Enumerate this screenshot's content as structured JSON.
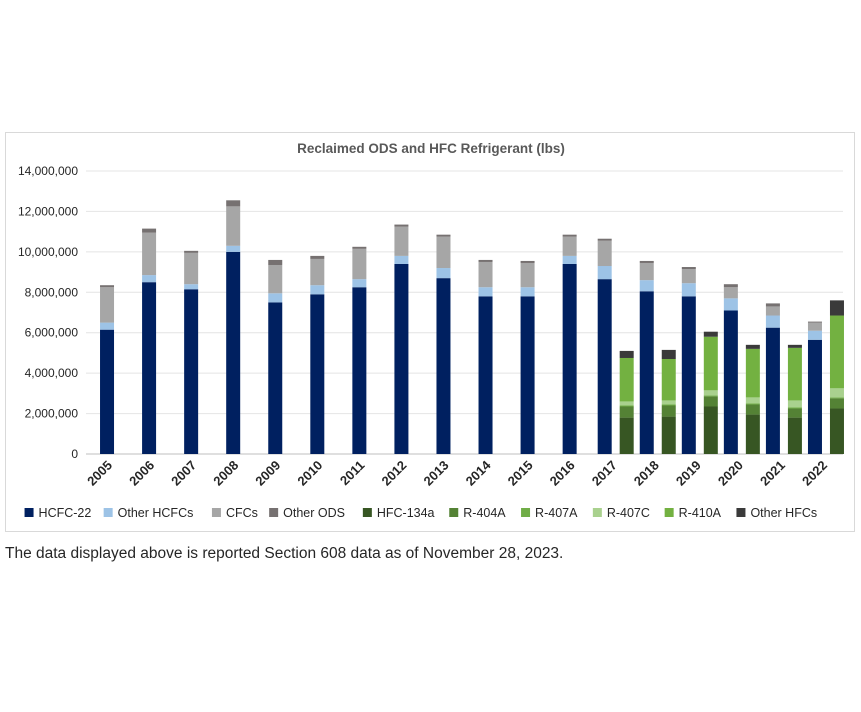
{
  "chart_data": {
    "type": "bar",
    "stacked": true,
    "title": "Reclaimed ODS and HFC Refrigerant (lbs)",
    "xlabel": "",
    "ylabel": "",
    "ylim": [
      0,
      14000000
    ],
    "yticks": [
      0,
      2000000,
      4000000,
      6000000,
      8000000,
      10000000,
      12000000,
      14000000
    ],
    "ytick_labels": [
      "0",
      "2,000,000",
      "4,000,000",
      "6,000,000",
      "8,000,000",
      "10,000,000",
      "12,000,000",
      "14,000,000"
    ],
    "grid": true,
    "legend_position": "bottom",
    "categories": [
      "2005",
      "2006",
      "2007",
      "2008",
      "2009",
      "2010",
      "2011",
      "2012",
      "2013",
      "2014",
      "2015",
      "2016",
      "2017",
      "2018",
      "2019",
      "2020",
      "2021",
      "2022"
    ],
    "groups": [
      {
        "name": "ODS",
        "categories": [
          "2005",
          "2006",
          "2007",
          "2008",
          "2009",
          "2010",
          "2011",
          "2012",
          "2013",
          "2014",
          "2015",
          "2016",
          "2017",
          "2018",
          "2019",
          "2020",
          "2021",
          "2022"
        ],
        "series": [
          {
            "name": "HCFC-22",
            "color": "#002060",
            "values": [
              6150000,
              8500000,
              8150000,
              10000000,
              7500000,
              7900000,
              8250000,
              9400000,
              8700000,
              7800000,
              7800000,
              9400000,
              8650000,
              8050000,
              7800000,
              7100000,
              6250000,
              5650000
            ]
          },
          {
            "name": "Other HCFCs",
            "color": "#9dc3e6",
            "values": [
              350000,
              350000,
              250000,
              300000,
              450000,
              450000,
              400000,
              400000,
              500000,
              450000,
              450000,
              400000,
              650000,
              550000,
              650000,
              600000,
              600000,
              450000
            ]
          },
          {
            "name": "CFCs",
            "color": "#a6a6a6",
            "values": [
              1750000,
              2100000,
              1550000,
              1950000,
              1400000,
              1300000,
              1500000,
              1450000,
              1550000,
              1250000,
              1200000,
              950000,
              1250000,
              850000,
              700000,
              550000,
              450000,
              400000
            ]
          },
          {
            "name": "Other ODS",
            "color": "#767171",
            "values": [
              100000,
              200000,
              100000,
              300000,
              250000,
              150000,
              100000,
              100000,
              100000,
              100000,
              100000,
              100000,
              100000,
              100000,
              100000,
              150000,
              150000,
              50000
            ]
          }
        ]
      },
      {
        "name": "HFC",
        "categories": [
          "2017",
          "2018",
          "2019",
          "2020",
          "2021",
          "2022"
        ],
        "series": [
          {
            "name": "HFC-134a",
            "color": "#375623",
            "values": [
              1800000,
              1850000,
              2350000,
              1950000,
              1800000,
              2250000
            ]
          },
          {
            "name": "R-404A",
            "color": "#548235",
            "values": [
              550000,
              550000,
              500000,
              500000,
              450000,
              500000
            ]
          },
          {
            "name": "R-407A",
            "color": "#70ad47",
            "values": [
              50000,
              50000,
              50000,
              50000,
              50000,
              50000
            ]
          },
          {
            "name": "R-407C",
            "color": "#a9d18e",
            "values": [
              200000,
              200000,
              250000,
              300000,
              350000,
              450000
            ]
          },
          {
            "name": "R-410A",
            "color": "#73b141",
            "values": [
              2150000,
              2050000,
              2650000,
              2400000,
              2600000,
              3600000
            ]
          },
          {
            "name": "Other HFCs",
            "color": "#3a3a3a",
            "values": [
              350000,
              450000,
              250000,
              200000,
              150000,
              750000
            ]
          }
        ]
      }
    ],
    "legend": [
      "HCFC-22",
      "Other HCFCs",
      "CFCs",
      "Other ODS",
      "HFC-134a",
      "R-404A",
      "R-407A",
      "R-407C",
      "R-410A",
      "Other HFCs"
    ]
  },
  "caption": "The data displayed above is reported Section 608 data as of November 28, 2023."
}
